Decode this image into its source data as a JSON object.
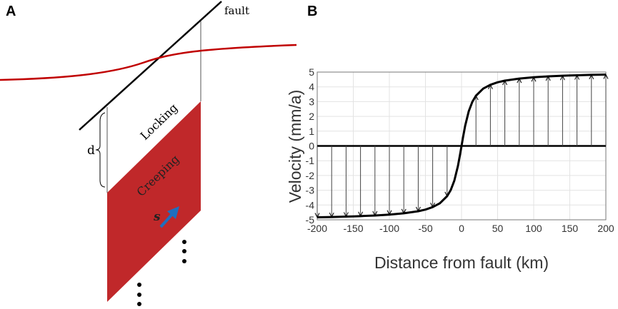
{
  "panels": {
    "a": "A",
    "b": "B"
  },
  "diagram": {
    "fault_label": "fault",
    "locking_label": "Locking",
    "creeping_label": "Creeping",
    "depth_label": "d",
    "slip_label": "s",
    "colors": {
      "surface_curve": "#c00000",
      "creeping_zone": "#c0282a",
      "slip_arrow": "#1f6fbf"
    }
  },
  "chart_data": {
    "type": "line",
    "xlabel": "Distance from fault (km)",
    "ylabel": "Velocity (mm/a)",
    "xlim": [
      -200,
      200
    ],
    "ylim": [
      -5,
      5
    ],
    "xticks": [
      -200,
      -150,
      -100,
      -50,
      0,
      50,
      100,
      150,
      200
    ],
    "yticks": [
      -5,
      -4,
      -3,
      -2,
      -1,
      0,
      1,
      2,
      3,
      4,
      5
    ],
    "grid": true,
    "curve": {
      "x": [
        -200,
        -180,
        -160,
        -150,
        -140,
        -120,
        -100,
        -80,
        -60,
        -50,
        -40,
        -30,
        -20,
        -15,
        -10,
        -5,
        -2,
        0,
        2,
        5,
        10,
        15,
        20,
        30,
        40,
        50,
        60,
        80,
        100,
        120,
        140,
        150,
        160,
        180,
        200
      ],
      "y": [
        -4.83,
        -4.81,
        -4.78,
        -4.77,
        -4.75,
        -4.71,
        -4.65,
        -4.56,
        -4.42,
        -4.31,
        -4.14,
        -3.88,
        -3.4,
        -2.99,
        -2.35,
        -1.36,
        -0.57,
        0,
        0.57,
        1.36,
        2.35,
        2.99,
        3.4,
        3.88,
        4.14,
        4.31,
        4.42,
        4.56,
        4.65,
        4.71,
        4.75,
        4.77,
        4.78,
        4.81,
        4.83
      ]
    },
    "arrows": {
      "x": [
        -200,
        -180,
        -160,
        -140,
        -120,
        -100,
        -80,
        -60,
        -40,
        -20,
        20,
        40,
        60,
        80,
        100,
        120,
        140,
        160,
        180,
        200
      ],
      "y": [
        -4.83,
        -4.81,
        -4.78,
        -4.75,
        -4.71,
        -4.65,
        -4.56,
        -4.42,
        -4.14,
        -3.4,
        3.4,
        4.14,
        4.42,
        4.56,
        4.65,
        4.71,
        4.75,
        4.78,
        4.81,
        4.83
      ]
    }
  }
}
